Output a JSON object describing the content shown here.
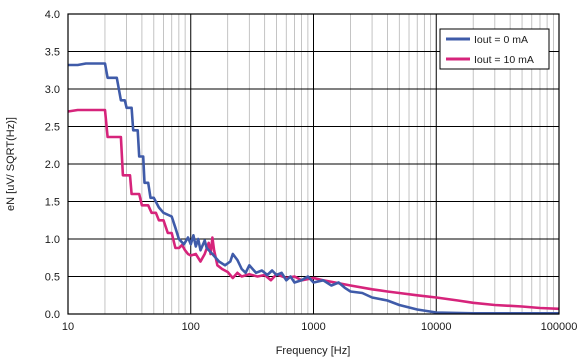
{
  "chart_data": {
    "type": "line",
    "title": "",
    "xlabel": "Frequency [Hz]",
    "ylabel": "eN [uV/ SQRT(Hz)]",
    "xscale": "log",
    "xlim": [
      10,
      100000
    ],
    "ylim": [
      0.0,
      4.0
    ],
    "x_ticks": [
      10,
      100,
      1000,
      10000,
      100000
    ],
    "x_tick_labels": [
      "10",
      "100",
      "1000",
      "10000",
      "100000"
    ],
    "y_ticks": [
      0.0,
      0.5,
      1.0,
      1.5,
      2.0,
      2.5,
      3.0,
      3.5,
      4.0
    ],
    "y_tick_labels": [
      "0.0",
      "0.5",
      "1.0",
      "1.5",
      "2.0",
      "2.5",
      "3.0",
      "3.5",
      "4.0"
    ],
    "grid": true,
    "legend_position": "top-right",
    "series": [
      {
        "name": "Iout = 0 mA",
        "color": "#3f5ba9",
        "points": [
          [
            10,
            3.32
          ],
          [
            12,
            3.32
          ],
          [
            14,
            3.34
          ],
          [
            16,
            3.34
          ],
          [
            20,
            3.34
          ],
          [
            21,
            3.15
          ],
          [
            25,
            3.15
          ],
          [
            27,
            2.85
          ],
          [
            29,
            2.85
          ],
          [
            30,
            2.75
          ],
          [
            33,
            2.75
          ],
          [
            34,
            2.45
          ],
          [
            37,
            2.45
          ],
          [
            38,
            2.1
          ],
          [
            41,
            2.1
          ],
          [
            42,
            1.75
          ],
          [
            45,
            1.75
          ],
          [
            47,
            1.55
          ],
          [
            50,
            1.55
          ],
          [
            55,
            1.42
          ],
          [
            60,
            1.35
          ],
          [
            70,
            1.3
          ],
          [
            75,
            1.15
          ],
          [
            80,
            1.0
          ],
          [
            88,
            0.93
          ],
          [
            95,
            1.02
          ],
          [
            100,
            0.93
          ],
          [
            105,
            1.05
          ],
          [
            110,
            0.9
          ],
          [
            115,
            1.0
          ],
          [
            120,
            0.85
          ],
          [
            130,
            0.98
          ],
          [
            135,
            0.88
          ],
          [
            150,
            0.8
          ],
          [
            170,
            0.7
          ],
          [
            190,
            0.65
          ],
          [
            210,
            0.7
          ],
          [
            220,
            0.8
          ],
          [
            240,
            0.72
          ],
          [
            260,
            0.6
          ],
          [
            280,
            0.55
          ],
          [
            300,
            0.65
          ],
          [
            340,
            0.55
          ],
          [
            380,
            0.58
          ],
          [
            420,
            0.52
          ],
          [
            460,
            0.58
          ],
          [
            500,
            0.52
          ],
          [
            550,
            0.55
          ],
          [
            600,
            0.45
          ],
          [
            650,
            0.5
          ],
          [
            700,
            0.42
          ],
          [
            800,
            0.45
          ],
          [
            900,
            0.5
          ],
          [
            1000,
            0.42
          ],
          [
            1200,
            0.45
          ],
          [
            1400,
            0.38
          ],
          [
            1600,
            0.42
          ],
          [
            1800,
            0.35
          ],
          [
            2000,
            0.3
          ],
          [
            2500,
            0.28
          ],
          [
            3000,
            0.22
          ],
          [
            4000,
            0.18
          ],
          [
            5000,
            0.12
          ],
          [
            7000,
            0.06
          ],
          [
            10000,
            0.02
          ],
          [
            20000,
            0.01
          ],
          [
            50000,
            0.01
          ],
          [
            100000,
            0.01
          ]
        ]
      },
      {
        "name": "Iout = 10 mA",
        "color": "#d6247b",
        "points": [
          [
            10,
            2.7
          ],
          [
            12,
            2.72
          ],
          [
            16,
            2.72
          ],
          [
            20,
            2.72
          ],
          [
            21,
            2.36
          ],
          [
            25,
            2.36
          ],
          [
            27,
            2.36
          ],
          [
            28,
            1.85
          ],
          [
            32,
            1.85
          ],
          [
            33,
            1.6
          ],
          [
            38,
            1.6
          ],
          [
            40,
            1.45
          ],
          [
            45,
            1.45
          ],
          [
            48,
            1.35
          ],
          [
            52,
            1.35
          ],
          [
            55,
            1.25
          ],
          [
            60,
            1.25
          ],
          [
            65,
            1.08
          ],
          [
            70,
            1.08
          ],
          [
            75,
            0.88
          ],
          [
            80,
            0.88
          ],
          [
            85,
            0.92
          ],
          [
            90,
            0.85
          ],
          [
            95,
            0.8
          ],
          [
            100,
            0.78
          ],
          [
            110,
            0.8
          ],
          [
            120,
            0.7
          ],
          [
            130,
            0.8
          ],
          [
            140,
            0.95
          ],
          [
            145,
            0.8
          ],
          [
            150,
            1.02
          ],
          [
            155,
            0.85
          ],
          [
            165,
            0.65
          ],
          [
            180,
            0.6
          ],
          [
            200,
            0.56
          ],
          [
            220,
            0.48
          ],
          [
            240,
            0.55
          ],
          [
            260,
            0.5
          ],
          [
            300,
            0.53
          ],
          [
            350,
            0.5
          ],
          [
            400,
            0.52
          ],
          [
            450,
            0.45
          ],
          [
            500,
            0.53
          ],
          [
            600,
            0.48
          ],
          [
            700,
            0.5
          ],
          [
            800,
            0.45
          ],
          [
            1000,
            0.48
          ],
          [
            1200,
            0.45
          ],
          [
            1500,
            0.42
          ],
          [
            2000,
            0.38
          ],
          [
            3000,
            0.33
          ],
          [
            4000,
            0.3
          ],
          [
            5000,
            0.28
          ],
          [
            7000,
            0.25
          ],
          [
            10000,
            0.22
          ],
          [
            15000,
            0.18
          ],
          [
            20000,
            0.15
          ],
          [
            30000,
            0.12
          ],
          [
            50000,
            0.1
          ],
          [
            70000,
            0.08
          ],
          [
            100000,
            0.07
          ]
        ]
      }
    ]
  }
}
